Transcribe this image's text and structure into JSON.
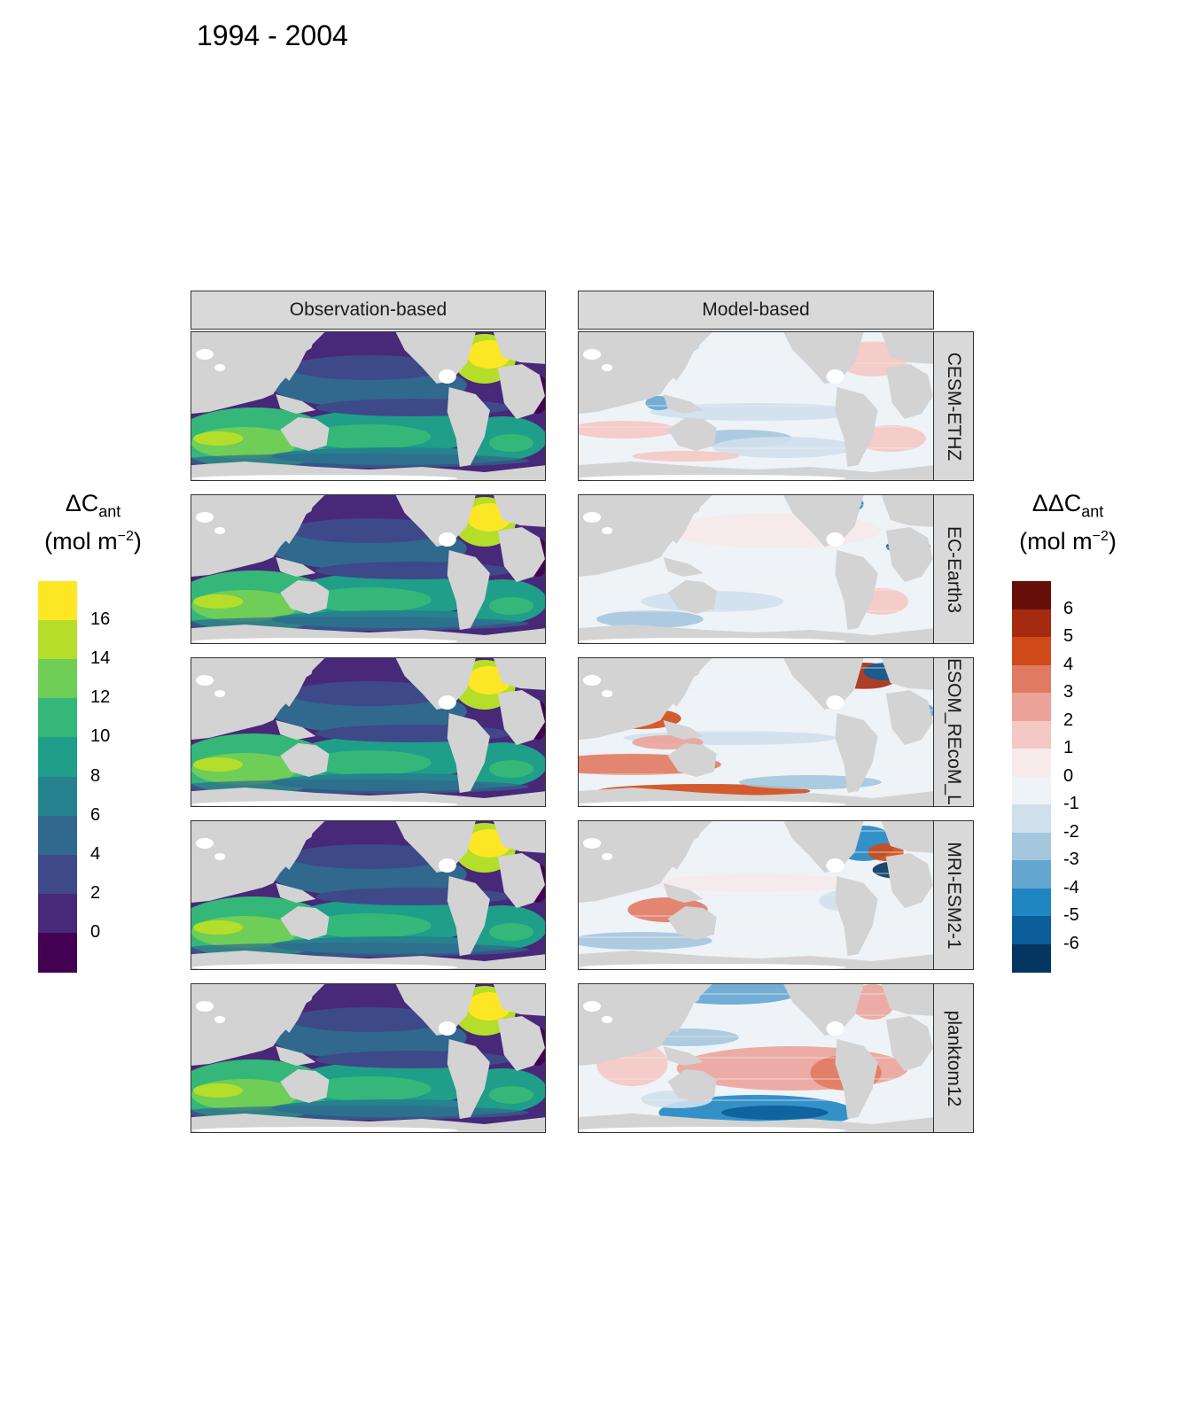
{
  "title": "1994 - 2004",
  "column_headers": [
    "Observation-based",
    "Model-based"
  ],
  "row_labels": [
    "CESM-ETHZ",
    "EC-Earth3",
    "FESOM_REcoM_LR",
    "MRI-ESM2-1",
    "planktom12"
  ],
  "legend_left": {
    "symbol": "ΔC",
    "subscript": "ant",
    "unit_prefix": "(mol m",
    "unit_sup": "−2",
    "unit_suffix": ")",
    "ticks": [
      "16",
      "14",
      "12",
      "10",
      "8",
      "6",
      "4",
      "2",
      "0"
    ],
    "colors": [
      "#fde725",
      "#b5de2b",
      "#6ece58",
      "#35b779",
      "#1f9e89",
      "#26828e",
      "#31688e",
      "#3e4989",
      "#482878",
      "#440154"
    ]
  },
  "legend_right": {
    "symbol": "ΔΔC",
    "subscript": "ant",
    "unit_prefix": "(mol m",
    "unit_sup": "−2",
    "unit_suffix": ")",
    "ticks": [
      "6",
      "5",
      "4",
      "3",
      "2",
      "1",
      "0",
      "-1",
      "-2",
      "-3",
      "-4",
      "-5",
      "-6"
    ],
    "colors": [
      "#67100a",
      "#a52a10",
      "#cf4a16",
      "#e07a63",
      "#eba39a",
      "#f4c8c4",
      "#f6eaea",
      "#eef3f7",
      "#cfe0ec",
      "#a4c7de",
      "#64a6d0",
      "#1f86c2",
      "#0b5e99",
      "#053561"
    ]
  },
  "map_colors": {
    "land": "#d3d3d3",
    "ice": "#ffffff"
  }
}
